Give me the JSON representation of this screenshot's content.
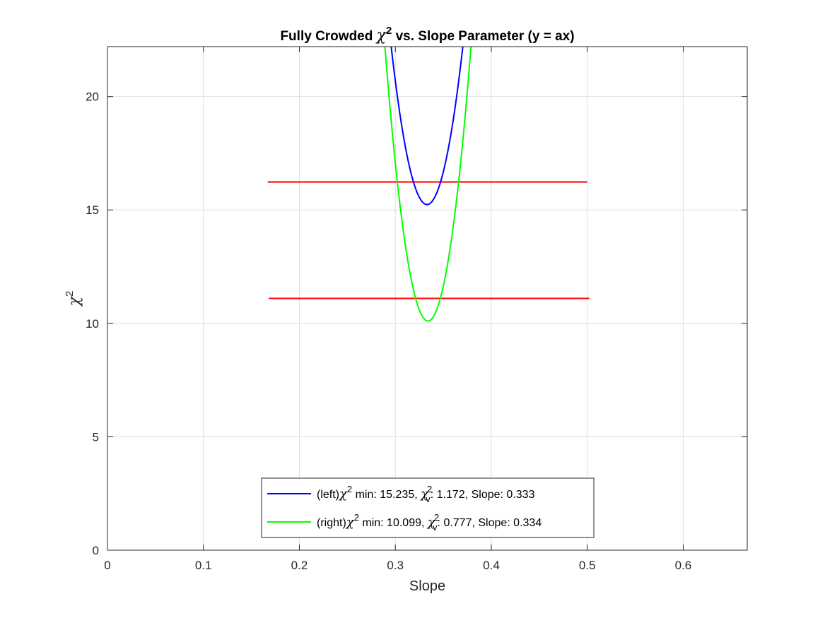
{
  "chart_data": {
    "type": "line",
    "title": {
      "prefix": "Fully Crowded ",
      "symbol": "χ",
      "superscript": "2",
      "suffix": " vs. Slope Parameter (y = ax)"
    },
    "xlabel": "Slope",
    "ylabel": {
      "symbol": "χ",
      "superscript": "2"
    },
    "xlim": [
      0,
      0.6667
    ],
    "ylim": [
      0,
      22.2
    ],
    "xticks": [
      "0",
      "0.1",
      "0.2",
      "0.3",
      "0.4",
      "0.5",
      "0.6"
    ],
    "yticks": [
      "0",
      "5",
      "10",
      "15",
      "20"
    ],
    "grid": true,
    "legend_position": "bottom-center",
    "series": [
      {
        "color": "#0000ff",
        "curve": {
          "type": "parabola",
          "min_x": 0.333,
          "min_y": 15.235,
          "curvature": 5000
        },
        "legend": {
          "prefix": "(left)",
          "sym": "χ",
          "sup": "2",
          "mid": " min: 15.235, ",
          "sym2": "χ",
          "sup2": "2",
          "sub2": "v",
          "rest": ": 1.172, Slope: 0.333"
        }
      },
      {
        "color": "#00ff00",
        "curve": {
          "type": "parabola",
          "min_x": 0.334,
          "min_y": 10.099,
          "curvature": 6020
        },
        "legend": {
          "prefix": "(right)",
          "sym": "χ",
          "sup": "2",
          "mid": " min: 10.099, ",
          "sym2": "χ",
          "sup2": "2",
          "sub2": "v",
          "rest": ": 0.777, Slope: 0.334"
        }
      }
    ],
    "reference_lines": [
      {
        "color": "#ff0000",
        "y": 16.235,
        "x_start": 0.167,
        "x_end": 0.5
      },
      {
        "color": "#ff0000",
        "y": 11.099,
        "x_start": 0.168,
        "x_end": 0.502
      }
    ]
  }
}
